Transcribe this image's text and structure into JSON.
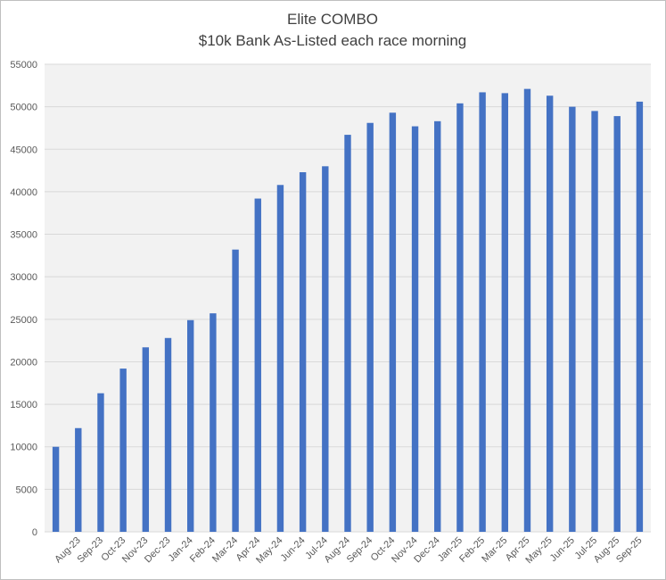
{
  "chart_data": {
    "type": "bar",
    "title": "Elite COMBO",
    "subtitle": "$10k Bank As-Listed each race morning",
    "categories": [
      null,
      "Aug-23",
      "Sep-23",
      "Oct-23",
      "Nov-23",
      "Dec-23",
      "Jan-24",
      "Feb-24",
      "Mar-24",
      "Apr-24",
      "May-24",
      "Jun-24",
      "Jul-24",
      "Aug-24",
      "Sep-24",
      "Oct-24",
      "Nov-24",
      "Dec-24",
      "Jan-25",
      "Feb-25",
      "Mar-25",
      "Apr-25",
      "May-25",
      "Jun-25",
      "Jul-25",
      "Aug-25",
      "Sep-25"
    ],
    "values": [
      10000,
      12200,
      16300,
      19200,
      21700,
      22800,
      24900,
      25700,
      33200,
      39200,
      40800,
      42300,
      43000,
      46700,
      48100,
      49300,
      47700,
      48300,
      50400,
      51700,
      51600,
      52100,
      51300,
      50000,
      49500,
      48900,
      50600
    ],
    "color": "#4472c4",
    "ylim": [
      0,
      55000
    ],
    "yticks": [
      0,
      5000,
      10000,
      15000,
      20000,
      25000,
      30000,
      35000,
      40000,
      45000,
      50000,
      55000
    ],
    "grid": true
  }
}
